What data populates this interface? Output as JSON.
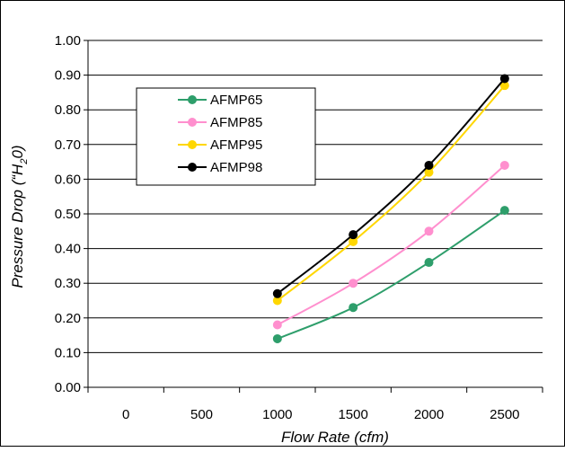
{
  "chart_data": {
    "type": "line",
    "title": "",
    "xlabel": "Flow Rate (cfm)",
    "ylabel_parts": [
      "Pressure Drop (“H",
      "2",
      "0)"
    ],
    "categories": [
      "0",
      "500",
      "1000",
      "1500",
      "2000",
      "2500"
    ],
    "x": [
      1000,
      1500,
      2000,
      2500
    ],
    "xlim": [
      0,
      2500
    ],
    "ylim": [
      0,
      1
    ],
    "y_ticks": [
      "0.00",
      "0.10",
      "0.20",
      "0.30",
      "0.40",
      "0.50",
      "0.60",
      "0.70",
      "0.80",
      "0.90",
      "1.00"
    ],
    "grid": "horizontal",
    "legend_position": "upper-left",
    "series": [
      {
        "name": "AFMP65",
        "color": "#2e9e6b",
        "values": [
          0.14,
          0.23,
          0.36,
          0.51
        ]
      },
      {
        "name": "AFMP85",
        "color": "#ff8fce",
        "values": [
          0.18,
          0.3,
          0.45,
          0.64
        ]
      },
      {
        "name": "AFMP95",
        "color": "#ffd700",
        "values": [
          0.25,
          0.42,
          0.62,
          0.87
        ]
      },
      {
        "name": "AFMP98",
        "color": "#000000",
        "values": [
          0.27,
          0.44,
          0.64,
          0.89
        ]
      }
    ]
  }
}
